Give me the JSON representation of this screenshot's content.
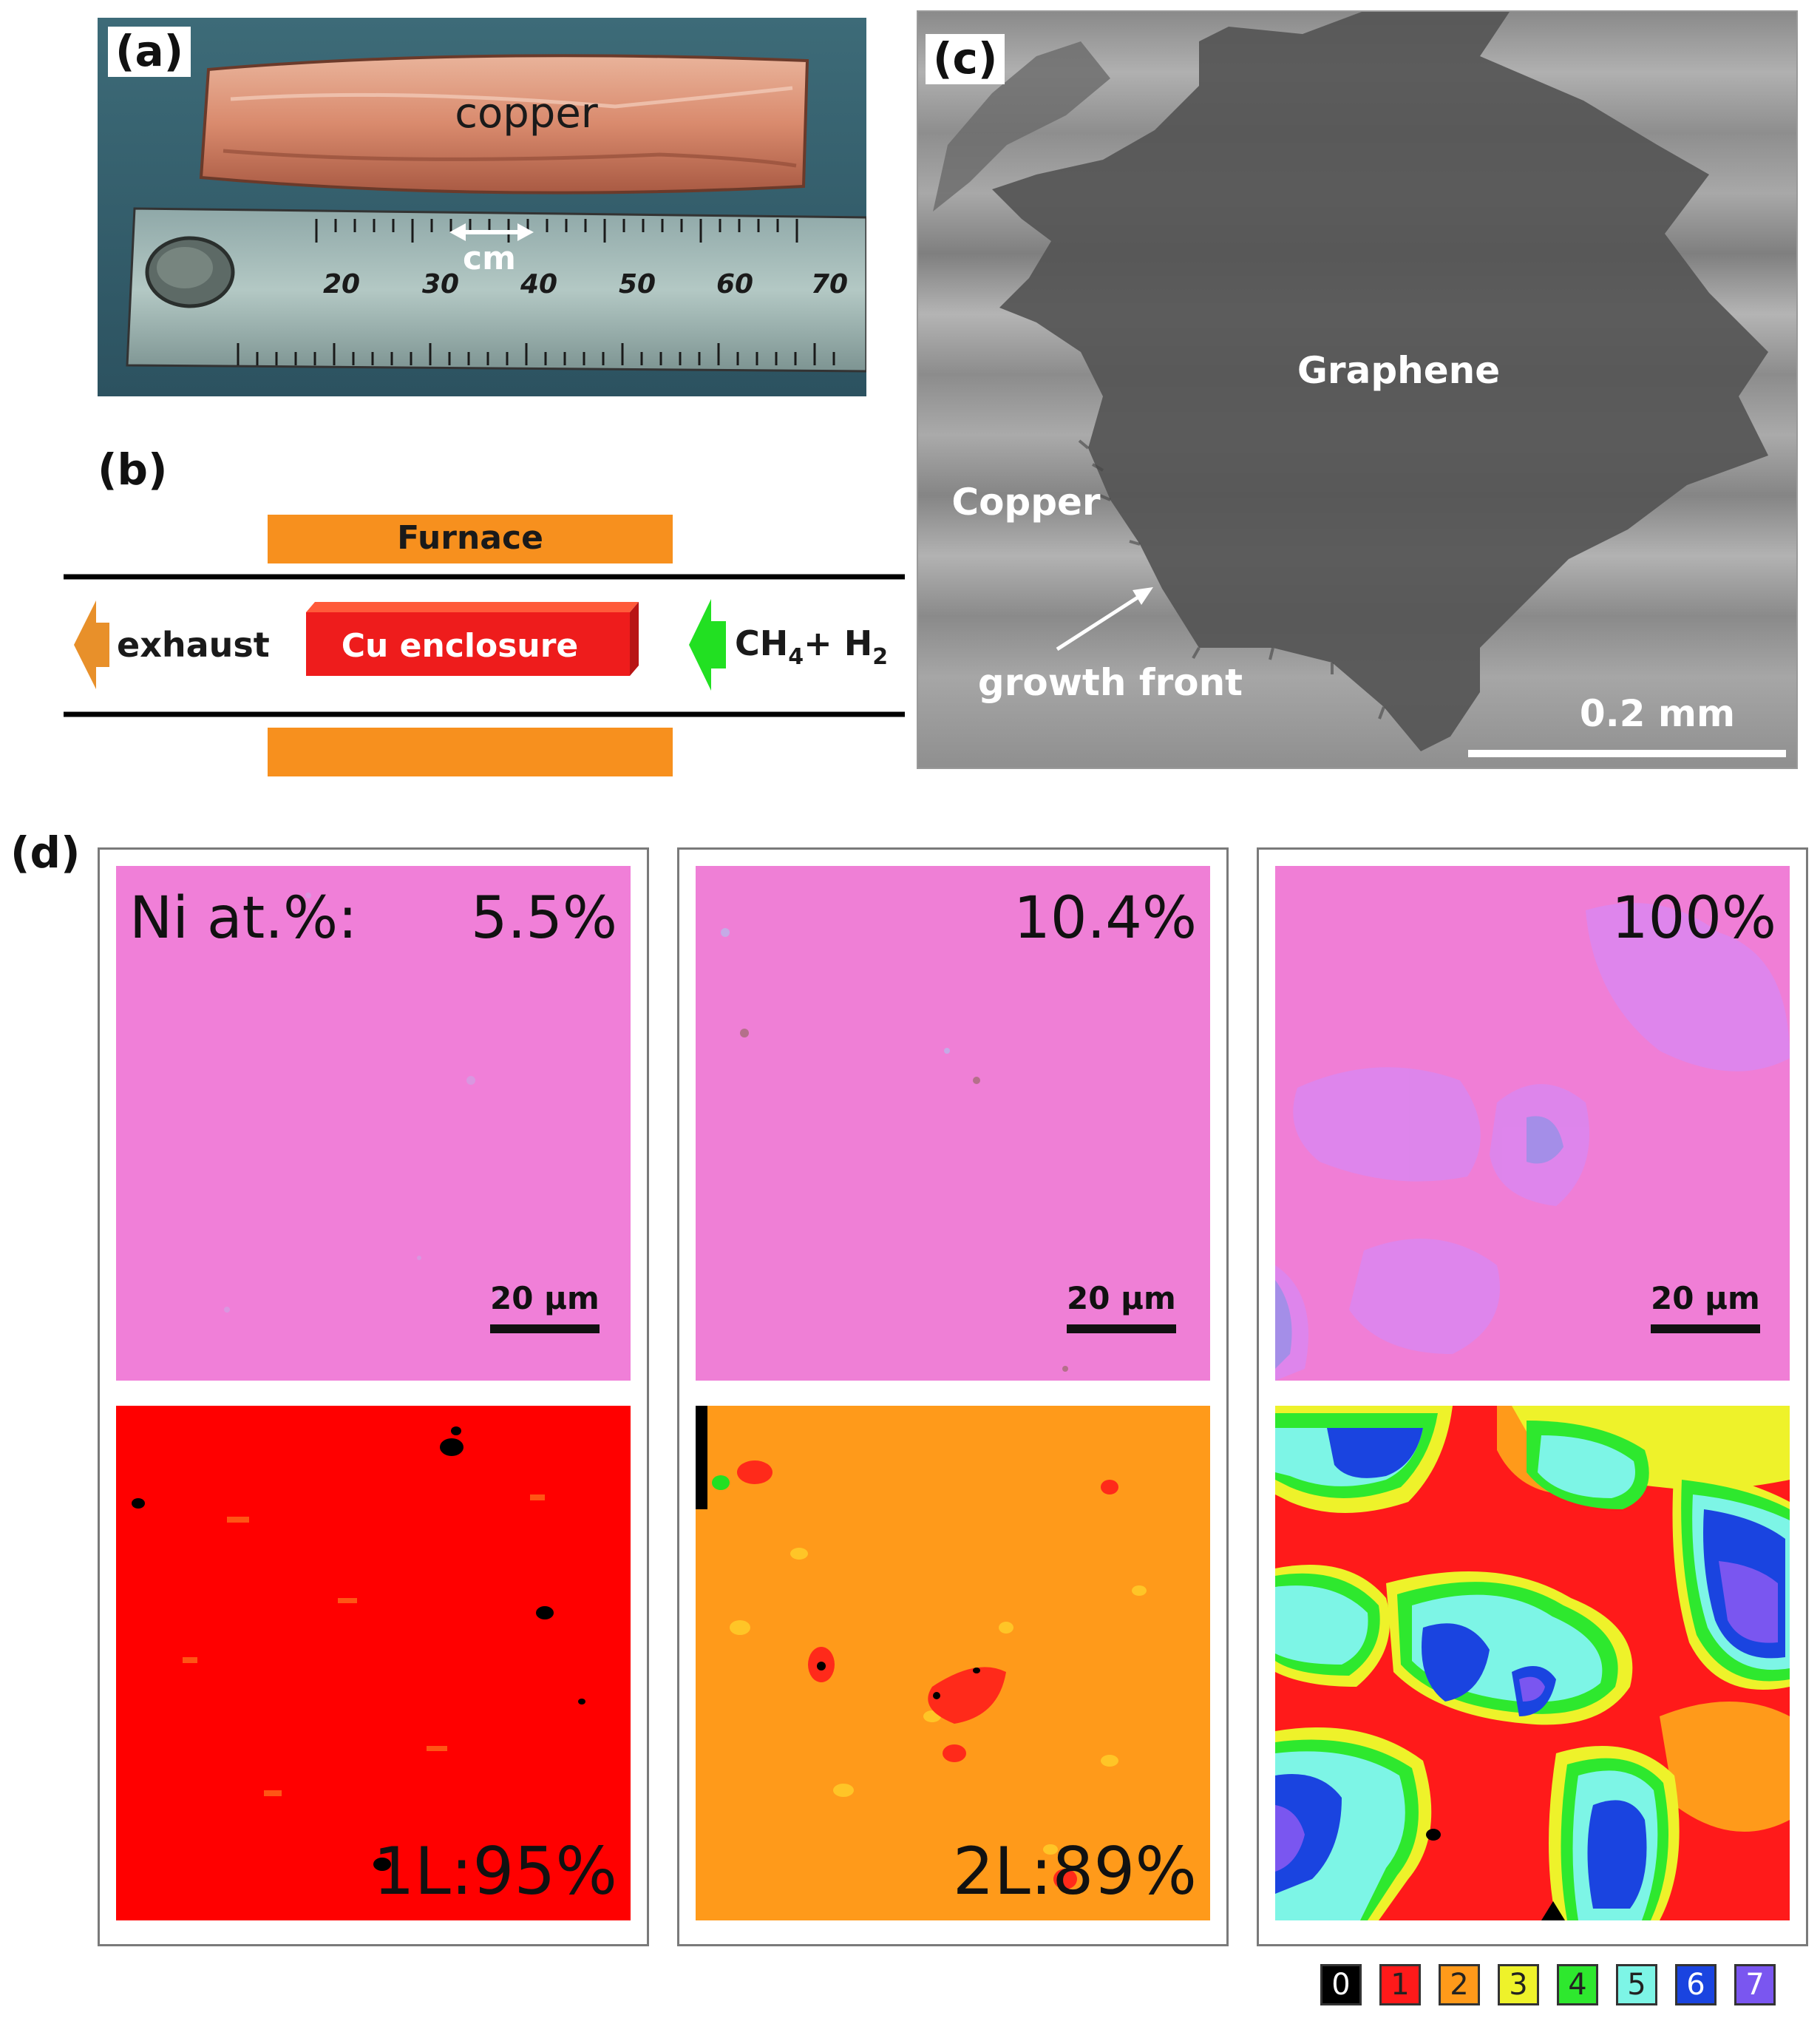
{
  "panels": {
    "a": {
      "label": "(a)",
      "copper_text": "copper",
      "scale_text": "cm",
      "ruler_ticks": [
        "20",
        "30",
        "40",
        "50",
        "60",
        "70"
      ]
    },
    "b": {
      "label": "(b)",
      "furnace": "Furnace",
      "exhaust": "exhaust",
      "enclosure": "Cu enclosure",
      "gas_main": "CH",
      "gas_sub4": "4",
      "gas_plus": "+ H",
      "gas_sub2": "2"
    },
    "c": {
      "label": "(c)",
      "graphene": "Graphene",
      "copper": "Copper",
      "growth_front": "growth front",
      "scale": "0.2 mm"
    },
    "d": {
      "label": "(d)",
      "ni_label": "Ni at.%:",
      "columns": [
        {
          "ni": "5.5%",
          "scale": "20 μm",
          "layer": "1L:95%"
        },
        {
          "ni": "10.4%",
          "scale": "20 μm",
          "layer": "2L:89%"
        },
        {
          "ni": "100%",
          "scale": "20 μm",
          "layer": ""
        }
      ],
      "legend": [
        {
          "n": "0",
          "color": "#000000"
        },
        {
          "n": "1",
          "color": "#ff1a1a"
        },
        {
          "n": "2",
          "color": "#ff9a1a"
        },
        {
          "n": "3",
          "color": "#eef22a"
        },
        {
          "n": "4",
          "color": "#2ee82e"
        },
        {
          "n": "5",
          "color": "#7df5e6"
        },
        {
          "n": "6",
          "color": "#1a44e0"
        },
        {
          "n": "7",
          "color": "#7a56f0"
        }
      ]
    }
  },
  "colors": {
    "furnace": "#f7901e",
    "enclosure": "#ee1c1c",
    "ch4_arrow": "#22e022",
    "exhaust_arrow": "#e8902a",
    "pink": "#f07fd8"
  }
}
